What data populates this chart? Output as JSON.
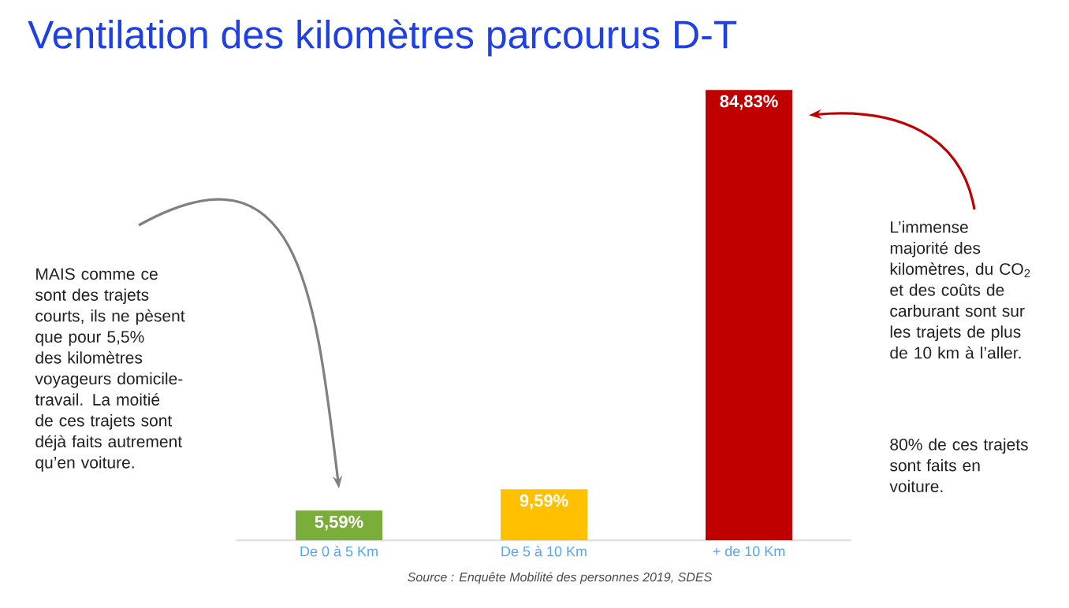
{
  "chart_data": {
    "type": "bar",
    "title": "Ventilation des kilomètres parcourus D-T",
    "categories": [
      "De 0 à 5 Km",
      "De 5 à 10 Km",
      "+ de 10 Km"
    ],
    "values": [
      5.59,
      9.59,
      84.83
    ],
    "colors": [
      "#7aad3a",
      "#ffc000",
      "#c00000"
    ],
    "value_labels": [
      "5,59%",
      "9,59%",
      "84,83%"
    ],
    "annotations": [
      "MAIS comme ce sont des trajets courts, ils ne pèsent que pour 5,5% des kilomètres voyageurs domicile-travail. La moitié de ces trajets sont déjà faits autrement qu’en voiture.",
      "L’immense majorité des kilomètres, du CO$_{2}$ et des coûts de carburant sont sur les trajets de plus de 10 km à l’aller.",
      "80% de ces trajets sont faits en voiture.",
      "Source : Enquête Mobilité des personnes 2019, SDES"
    ]
  }
}
